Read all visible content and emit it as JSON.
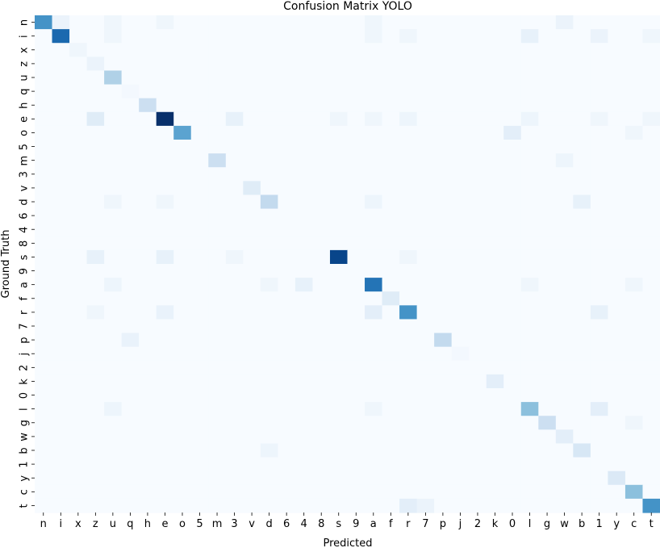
{
  "chart_data": {
    "type": "heatmap",
    "title": "Confusion Matrix YOLO",
    "xlabel": "Predicted",
    "ylabel": "Ground Truth",
    "labels": [
      "n",
      "i",
      "x",
      "z",
      "u",
      "q",
      "h",
      "e",
      "o",
      "5",
      "m",
      "3",
      "v",
      "d",
      "6",
      "4",
      "8",
      "s",
      "9",
      "a",
      "f",
      "r",
      "7",
      "p",
      "j",
      "2",
      "k",
      "0",
      "l",
      "g",
      "w",
      "b",
      "1",
      "y",
      "c",
      "t"
    ],
    "colormap": "Blues",
    "color_low": "#f7fbff",
    "color_high": "#08306b",
    "value_range": [
      0,
      1
    ],
    "colorbar": false,
    "notes": "Values are estimated relative intensities (0 = lightest, 1 = darkest); row = ground truth, column = predicted.",
    "cells": [
      [
        0,
        0,
        0.62
      ],
      [
        0,
        1,
        0.06
      ],
      [
        0,
        4,
        0.04
      ],
      [
        0,
        7,
        0.04
      ],
      [
        0,
        19,
        0.04
      ],
      [
        0,
        30,
        0.06
      ],
      [
        1,
        1,
        0.78
      ],
      [
        1,
        4,
        0.04
      ],
      [
        1,
        19,
        0.04
      ],
      [
        1,
        21,
        0.04
      ],
      [
        1,
        28,
        0.08
      ],
      [
        1,
        32,
        0.06
      ],
      [
        1,
        35,
        0.04
      ],
      [
        2,
        2,
        0.04
      ],
      [
        3,
        3,
        0.06
      ],
      [
        4,
        4,
        0.32
      ],
      [
        5,
        5,
        0.02
      ],
      [
        6,
        6,
        0.22
      ],
      [
        7,
        3,
        0.12
      ],
      [
        7,
        7,
        1.0
      ],
      [
        7,
        11,
        0.08
      ],
      [
        7,
        17,
        0.04
      ],
      [
        7,
        19,
        0.04
      ],
      [
        7,
        21,
        0.05
      ],
      [
        7,
        28,
        0.05
      ],
      [
        7,
        32,
        0.04
      ],
      [
        7,
        35,
        0.04
      ],
      [
        8,
        8,
        0.55
      ],
      [
        8,
        27,
        0.1
      ],
      [
        8,
        34,
        0.04
      ],
      [
        9,
        9,
        0.0
      ],
      [
        10,
        10,
        0.22
      ],
      [
        10,
        30,
        0.05
      ],
      [
        11,
        11,
        0.0
      ],
      [
        12,
        12,
        0.12
      ],
      [
        13,
        4,
        0.04
      ],
      [
        13,
        7,
        0.04
      ],
      [
        13,
        13,
        0.26
      ],
      [
        13,
        19,
        0.05
      ],
      [
        13,
        31,
        0.08
      ],
      [
        14,
        14,
        0.0
      ],
      [
        15,
        15,
        0.0
      ],
      [
        16,
        16,
        0.0
      ],
      [
        17,
        3,
        0.08
      ],
      [
        17,
        7,
        0.08
      ],
      [
        17,
        11,
        0.04
      ],
      [
        17,
        17,
        0.92
      ],
      [
        17,
        21,
        0.04
      ],
      [
        18,
        18,
        0.0
      ],
      [
        19,
        4,
        0.05
      ],
      [
        19,
        13,
        0.04
      ],
      [
        19,
        15,
        0.08
      ],
      [
        19,
        19,
        0.74
      ],
      [
        19,
        28,
        0.04
      ],
      [
        19,
        34,
        0.04
      ],
      [
        20,
        20,
        0.12
      ],
      [
        21,
        3,
        0.04
      ],
      [
        21,
        7,
        0.07
      ],
      [
        21,
        19,
        0.1
      ],
      [
        21,
        21,
        0.62
      ],
      [
        21,
        32,
        0.08
      ],
      [
        22,
        22,
        0.0
      ],
      [
        23,
        5,
        0.07
      ],
      [
        23,
        23,
        0.26
      ],
      [
        24,
        24,
        0.02
      ],
      [
        25,
        25,
        0.0
      ],
      [
        26,
        26,
        0.1
      ],
      [
        27,
        27,
        0.0
      ],
      [
        28,
        4,
        0.05
      ],
      [
        28,
        19,
        0.04
      ],
      [
        28,
        28,
        0.42
      ],
      [
        28,
        32,
        0.1
      ],
      [
        29,
        29,
        0.22
      ],
      [
        29,
        34,
        0.04
      ],
      [
        30,
        30,
        0.1
      ],
      [
        31,
        13,
        0.05
      ],
      [
        31,
        31,
        0.16
      ],
      [
        32,
        32,
        0.0
      ],
      [
        33,
        33,
        0.14
      ],
      [
        34,
        34,
        0.42
      ],
      [
        35,
        21,
        0.1
      ],
      [
        35,
        22,
        0.06
      ],
      [
        35,
        35,
        0.62
      ]
    ]
  }
}
